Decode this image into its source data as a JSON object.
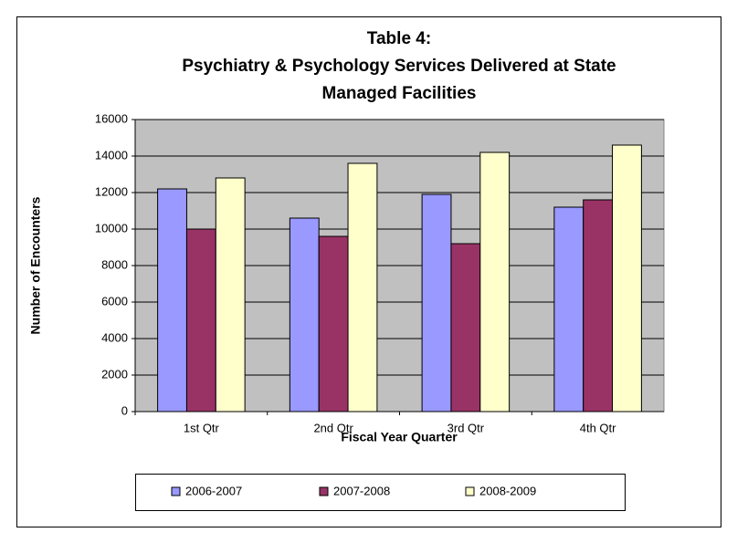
{
  "chart_data": {
    "type": "bar",
    "title": [
      "Table 4:",
      "Psychiatry & Psychology Services Delivered at State",
      "Managed Facilities"
    ],
    "xlabel": "Fiscal Year Quarter",
    "ylabel": "Number of Encounters",
    "categories": [
      "1st Qtr",
      "2nd Qtr",
      "3rd Qtr",
      "4th Qtr"
    ],
    "series": [
      {
        "name": "2006-2007",
        "color": "#9999ff",
        "values": [
          12200,
          10600,
          11900,
          11200
        ]
      },
      {
        "name": "2007-2008",
        "color": "#993366",
        "values": [
          10000,
          9600,
          9200,
          11600
        ]
      },
      {
        "name": "2008-2009",
        "color": "#ffffcc",
        "values": [
          12800,
          13600,
          14200,
          14600
        ]
      }
    ],
    "ylim": [
      0,
      16000
    ],
    "yticks": [
      0,
      2000,
      4000,
      6000,
      8000,
      10000,
      12000,
      14000,
      16000
    ],
    "grid": true,
    "legend": "bottom"
  }
}
